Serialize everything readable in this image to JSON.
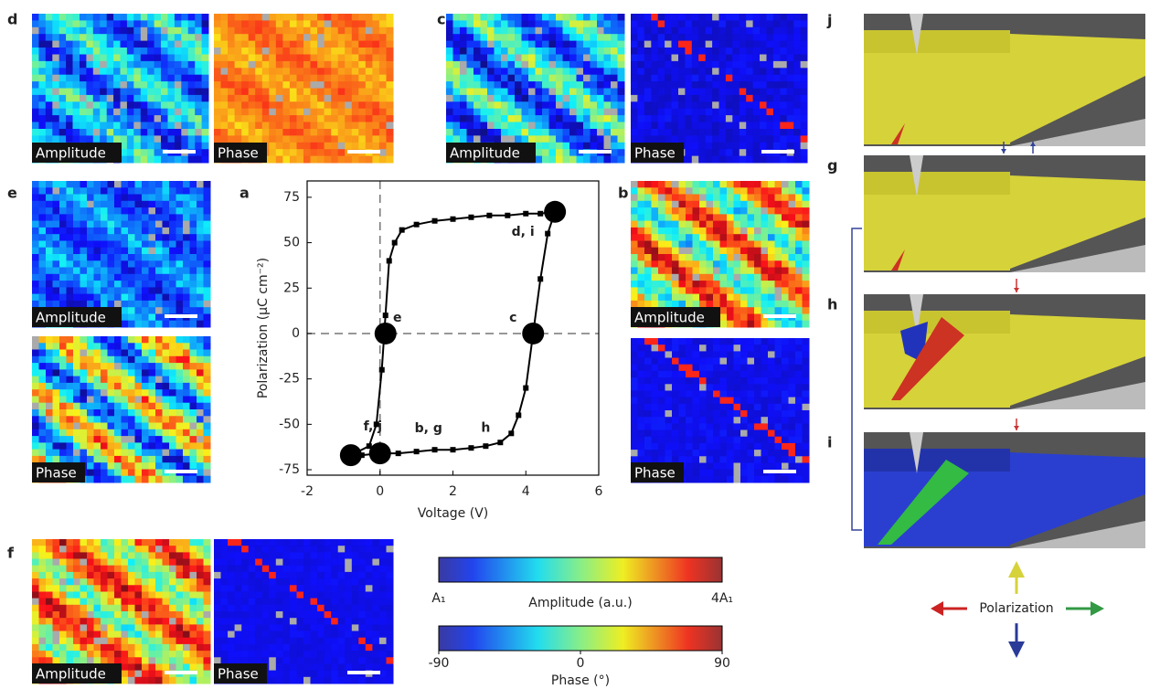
{
  "maps": [
    {
      "letter": "d",
      "labels": [
        "Amplitude",
        "Phase"
      ]
    },
    {
      "letter": "c",
      "labels": [
        "Amplitude",
        "Phase"
      ]
    },
    {
      "letter": "e",
      "labels": [
        "Amplitude",
        "Phase"
      ]
    },
    {
      "letter": "b",
      "labels": [
        "Amplitude",
        "Phase"
      ]
    },
    {
      "letter": "f",
      "labels": [
        "Amplitude",
        "Phase"
      ]
    }
  ],
  "chart_letter": "a",
  "chart_data": {
    "type": "line",
    "xlabel": "Voltage (V)",
    "ylabel": "Polarization (μC cm⁻²)",
    "xlim": [
      -2,
      6
    ],
    "ylim": [
      -78,
      84
    ],
    "xticks": [
      -2,
      0,
      2,
      4,
      6
    ],
    "yticks": [
      -75,
      -50,
      -25,
      0,
      25,
      50,
      75
    ],
    "series": [
      {
        "color": "#000000",
        "x": [
          -0.8,
          -0.5,
          0,
          0.5,
          1,
          1.5,
          2,
          2.5,
          2.9,
          3.3,
          3.6,
          3.8,
          4.0,
          4.2,
          4.4,
          4.6,
          4.8,
          4.4,
          4.0,
          3.5,
          3.0,
          2.5,
          2.0,
          1.5,
          1.0,
          0.6,
          0.4,
          0.25,
          0.15,
          0.05,
          -0.1,
          -0.3,
          -0.8
        ],
        "values": [
          -67,
          -67,
          -66,
          -66,
          -65,
          -64,
          -64,
          -63,
          -62,
          -60,
          -55,
          -45,
          -30,
          0,
          30,
          55,
          67,
          66,
          66,
          65,
          65,
          64,
          63,
          62,
          60,
          57,
          50,
          40,
          10,
          -20,
          -50,
          -62,
          -67
        ]
      }
    ],
    "markers": {
      "x": [
        4.8,
        4.2,
        0.15,
        -0.8,
        0
      ],
      "values": [
        67,
        0,
        0,
        -67,
        -66
      ],
      "labels": [
        "d, i",
        "c",
        "e",
        "f, j",
        "b, g"
      ]
    },
    "annotations": [
      {
        "text": "h",
        "x": 2.9,
        "y": -57
      }
    ]
  },
  "colorbars": {
    "amplitude": {
      "min_label": "A₁",
      "label": "Amplitude (a.u.)",
      "max_label": "4A₁"
    },
    "phase": {
      "label": "Phase (°)",
      "lim": [
        -90,
        90
      ],
      "ticks": [
        -90,
        0,
        90
      ]
    }
  },
  "renders": [
    {
      "letter": "j"
    },
    {
      "letter": "g"
    },
    {
      "letter": "h"
    },
    {
      "letter": "i"
    }
  ],
  "legend": {
    "label": "Polarization"
  }
}
